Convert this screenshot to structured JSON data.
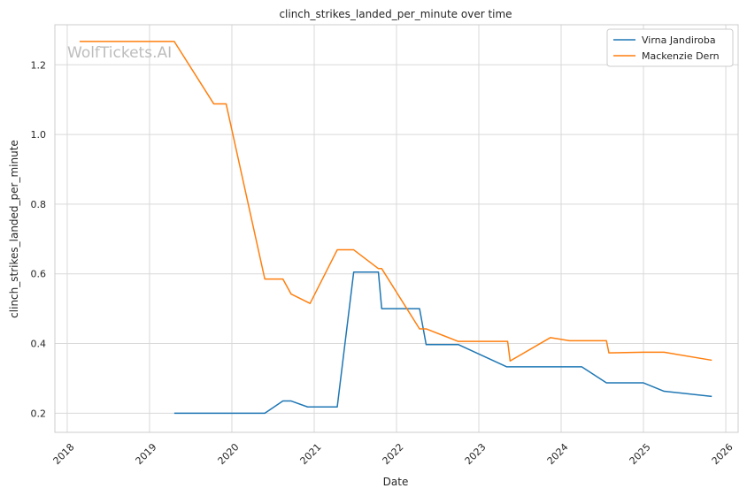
{
  "chart_data": {
    "type": "line",
    "title": "clinch_strikes_landed_per_minute over time",
    "xlabel": "Date",
    "ylabel": "clinch_strikes_landed_per_minute",
    "watermark": "WolfTickets.AI",
    "xlim": [
      2017.85,
      2026.15
    ],
    "ylim": [
      0.145,
      1.315
    ],
    "x_ticks": [
      2018,
      2019,
      2020,
      2021,
      2022,
      2023,
      2024,
      2025,
      2026
    ],
    "x_tick_labels": [
      "2018",
      "2019",
      "2020",
      "2021",
      "2022",
      "2023",
      "2024",
      "2025",
      "2026"
    ],
    "y_ticks": [
      0.2,
      0.4,
      0.6,
      0.8,
      1.0,
      1.2
    ],
    "y_tick_labels": [
      "0.2",
      "0.4",
      "0.6",
      "0.8",
      "1.0",
      "1.2"
    ],
    "grid": true,
    "legend_position": "top-right",
    "series": [
      {
        "name": "Virna Jandiroba",
        "color": "#1f77b4",
        "points": [
          [
            2019.3,
            0.2
          ],
          [
            2020.4,
            0.2
          ],
          [
            2020.62,
            0.235
          ],
          [
            2020.72,
            0.235
          ],
          [
            2020.92,
            0.218
          ],
          [
            2021.28,
            0.218
          ],
          [
            2021.48,
            0.605
          ],
          [
            2021.78,
            0.605
          ],
          [
            2021.82,
            0.5
          ],
          [
            2022.28,
            0.5
          ],
          [
            2022.36,
            0.397
          ],
          [
            2022.75,
            0.397
          ],
          [
            2023.34,
            0.333
          ],
          [
            2024.25,
            0.333
          ],
          [
            2024.55,
            0.287
          ],
          [
            2025.0,
            0.287
          ],
          [
            2025.25,
            0.263
          ],
          [
            2025.83,
            0.248
          ]
        ]
      },
      {
        "name": "Mackenzie Dern",
        "color": "#ff7f0e",
        "points": [
          [
            2018.15,
            1.267
          ],
          [
            2019.3,
            1.267
          ],
          [
            2019.78,
            1.088
          ],
          [
            2019.93,
            1.088
          ],
          [
            2020.4,
            0.585
          ],
          [
            2020.62,
            0.585
          ],
          [
            2020.72,
            0.542
          ],
          [
            2020.95,
            0.515
          ],
          [
            2021.28,
            0.669
          ],
          [
            2021.48,
            0.669
          ],
          [
            2021.78,
            0.615
          ],
          [
            2021.82,
            0.615
          ],
          [
            2022.28,
            0.442
          ],
          [
            2022.36,
            0.442
          ],
          [
            2022.75,
            0.406
          ],
          [
            2023.35,
            0.406
          ],
          [
            2023.38,
            0.35
          ],
          [
            2023.87,
            0.417
          ],
          [
            2024.1,
            0.408
          ],
          [
            2024.55,
            0.408
          ],
          [
            2024.58,
            0.373
          ],
          [
            2025.0,
            0.375
          ],
          [
            2025.25,
            0.375
          ],
          [
            2025.83,
            0.352
          ]
        ]
      }
    ]
  }
}
